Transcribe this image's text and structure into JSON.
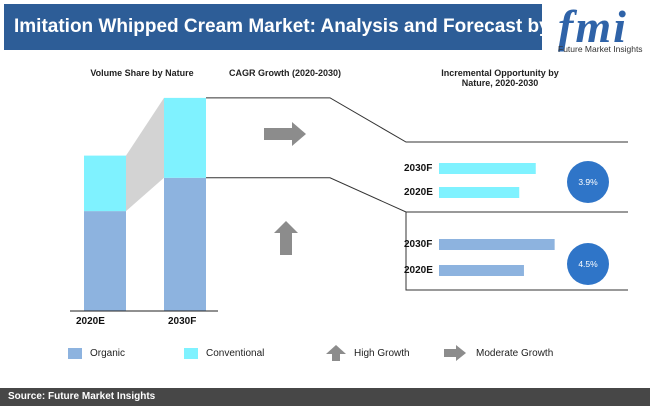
{
  "header": {
    "title": "Imitation Whipped Cream Market: Analysis and Forecast by Nature"
  },
  "logo": {
    "mark": "fmi",
    "subtitle": "Future Market Insights"
  },
  "chart_data": {
    "type": "bar",
    "panels": {
      "volume_share": {
        "title": "Volume Share by Nature",
        "categories": [
          "2020E",
          "2030F"
        ],
        "series": [
          {
            "name": "Organic",
            "values": [
              0.45,
              0.6
            ]
          },
          {
            "name": "Conventional",
            "values": [
              0.25,
              0.36
            ]
          }
        ]
      },
      "cagr": {
        "title": "CAGR Growth (2020-2030)"
      },
      "incremental": {
        "title": "Incremental Opportunity by Nature, 2020-2030",
        "groups": [
          {
            "categories": [
              "2030F",
              "2020E"
            ],
            "values": [
              0.82,
              0.68
            ],
            "cagr": "3.9%",
            "color": "#7ff2ff"
          },
          {
            "categories": [
              "2030F",
              "2020E"
            ],
            "values": [
              0.98,
              0.72
            ],
            "cagr": "4.5%",
            "color": "#8db3df"
          }
        ]
      }
    }
  },
  "legend": {
    "organic": "Organic",
    "conventional": "Conventional",
    "high_growth": "High Growth",
    "moderate_growth": "Moderate Growth"
  },
  "colors": {
    "organic": "#8db3df",
    "conventional": "#7ff2ff",
    "arrow": "#8c8c8c",
    "title_bar": "#2d5d97",
    "circle": "#2f75c8"
  },
  "footer": {
    "source": "Source: Future Market Insights"
  }
}
